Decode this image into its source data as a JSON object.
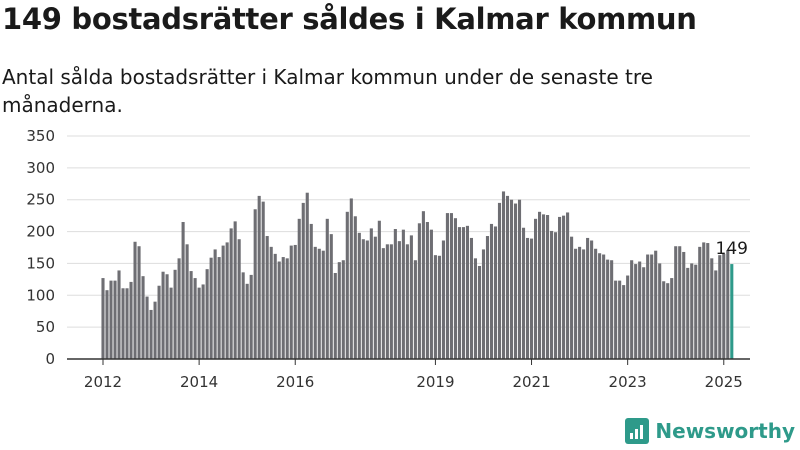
{
  "header": {
    "title": "149 bostadsrätter såldes i Kalmar kommun",
    "subtitle": "Antal sålda bostadsrätter i Kalmar kommun under de senaste tre månaderna."
  },
  "brand": {
    "name": "Newsworthy",
    "icon": "newsworthy-logo-icon",
    "color": "#2e9a8a"
  },
  "chart_data": {
    "type": "bar",
    "title": "149 bostadsrätter såldes i Kalmar kommun",
    "subtitle": "Antal sålda bostadsrätter i Kalmar kommun under de senaste tre månaderna.",
    "xlabel": "",
    "ylabel": "",
    "ylim": [
      0,
      350
    ],
    "yticks": [
      0,
      50,
      100,
      150,
      200,
      250,
      300,
      350
    ],
    "x_tick_labels": [
      "2012",
      "2014",
      "2016",
      "2019",
      "2021",
      "2023",
      "2025"
    ],
    "x_tick_index": [
      0,
      24,
      48,
      83,
      107,
      131,
      155
    ],
    "grid": true,
    "legend": "none",
    "bar_color": "#6e6e73",
    "highlight_color": "#2e9a8a",
    "last_label": "149",
    "values": [
      127,
      108,
      123,
      123,
      139,
      111,
      111,
      121,
      184,
      177,
      130,
      98,
      77,
      90,
      115,
      137,
      133,
      112,
      140,
      158,
      215,
      180,
      138,
      127,
      112,
      117,
      141,
      159,
      172,
      160,
      178,
      183,
      205,
      216,
      188,
      136,
      118,
      132,
      235,
      256,
      247,
      193,
      176,
      165,
      153,
      160,
      158,
      178,
      179,
      220,
      245,
      261,
      212,
      176,
      173,
      170,
      220,
      196,
      135,
      152,
      155,
      231,
      252,
      224,
      198,
      188,
      186,
      205,
      192,
      217,
      174,
      180,
      180,
      204,
      185,
      203,
      180,
      194,
      155,
      213,
      232,
      215,
      203,
      163,
      162,
      186,
      229,
      229,
      221,
      207,
      207,
      209,
      190,
      158,
      146,
      172,
      193,
      212,
      208,
      245,
      263,
      256,
      250,
      244,
      250,
      206,
      190,
      189,
      220,
      231,
      227,
      226,
      201,
      199,
      223,
      225,
      230,
      192,
      173,
      176,
      172,
      190,
      186,
      173,
      166,
      164,
      156,
      155,
      123,
      123,
      116,
      131,
      155,
      149,
      153,
      144,
      164,
      164,
      170,
      150,
      122,
      119,
      127,
      177,
      177,
      168,
      143,
      150,
      148,
      176,
      183,
      182,
      158,
      139,
      163,
      165,
      171,
      149
    ]
  }
}
